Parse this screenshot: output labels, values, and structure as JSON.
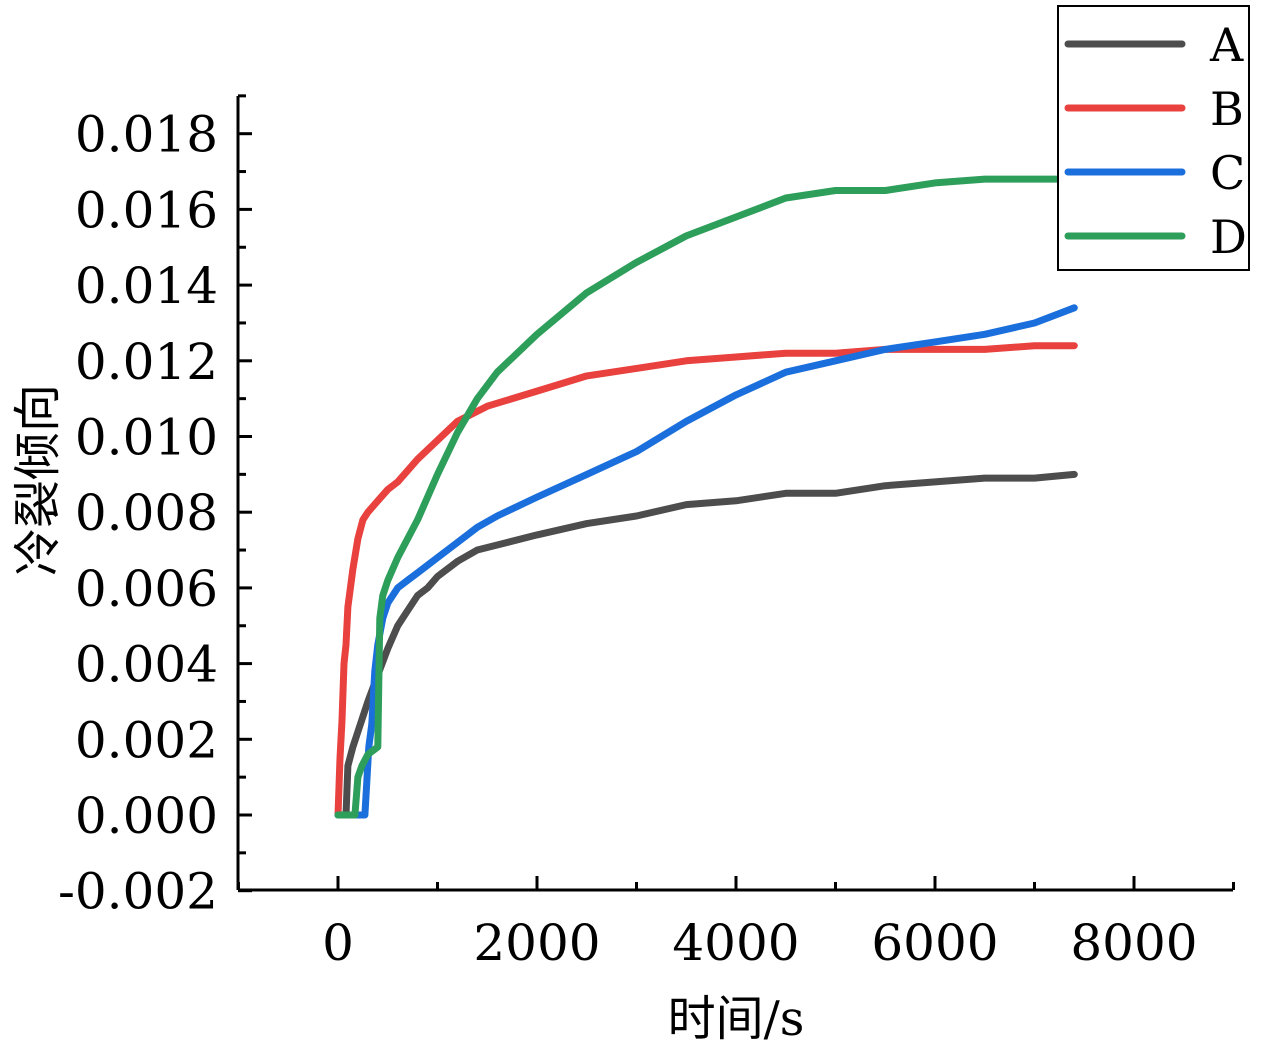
{
  "chart_data": {
    "type": "line",
    "xlabel": "时间/s",
    "ylabel": "冷裂倾向",
    "xlim": [
      -1000,
      9000
    ],
    "ylim": [
      -0.002,
      0.019
    ],
    "xticks": [
      "0",
      "2000",
      "4000",
      "6000",
      "8000"
    ],
    "yticks": [
      "-0.002",
      "0.000",
      "0.002",
      "0.004",
      "0.006",
      "0.008",
      "0.010",
      "0.012",
      "0.014",
      "0.016",
      "0.018"
    ],
    "grid": false,
    "legend_position": "top-right",
    "series": [
      {
        "name": "A",
        "color": "#4d4d4d",
        "x": [
          50,
          80,
          100,
          150,
          200,
          300,
          400,
          500,
          600,
          700,
          800,
          900,
          1000,
          1200,
          1400,
          1700,
          2000,
          2500,
          3000,
          3500,
          4000,
          4500,
          5000,
          5500,
          6000,
          6500,
          7000,
          7400
        ],
        "y": [
          0.0,
          0.0,
          0.0013,
          0.0018,
          0.0022,
          0.003,
          0.0037,
          0.0044,
          0.005,
          0.0054,
          0.0058,
          0.006,
          0.0063,
          0.0067,
          0.007,
          0.0072,
          0.0074,
          0.0077,
          0.0079,
          0.0082,
          0.0083,
          0.0085,
          0.0085,
          0.0087,
          0.0088,
          0.0089,
          0.0089,
          0.009
        ]
      },
      {
        "name": "B",
        "color": "#e8413e",
        "x": [
          0,
          20,
          40,
          60,
          80,
          100,
          150,
          200,
          250,
          300,
          400,
          500,
          600,
          800,
          1000,
          1200,
          1500,
          2000,
          2500,
          3000,
          3500,
          4000,
          4500,
          5000,
          5500,
          6000,
          6500,
          7000,
          7400
        ],
        "y": [
          0.0,
          0.0015,
          0.0025,
          0.004,
          0.0045,
          0.0055,
          0.0065,
          0.0073,
          0.0078,
          0.008,
          0.0083,
          0.0086,
          0.0088,
          0.0094,
          0.0099,
          0.0104,
          0.0108,
          0.0112,
          0.0116,
          0.0118,
          0.012,
          0.0121,
          0.0122,
          0.0122,
          0.0123,
          0.0123,
          0.0123,
          0.0124,
          0.0124
        ]
      },
      {
        "name": "C",
        "color": "#1b6fdc",
        "x": [
          0,
          270,
          310,
          340,
          370,
          400,
          450,
          500,
          600,
          700,
          800,
          900,
          1000,
          1200,
          1400,
          1600,
          2000,
          2500,
          3000,
          3500,
          4000,
          4500,
          5000,
          5500,
          6000,
          6500,
          7000,
          7400
        ],
        "y": [
          0.0,
          0.0,
          0.0018,
          0.0024,
          0.0038,
          0.0045,
          0.0052,
          0.0056,
          0.006,
          0.0062,
          0.0064,
          0.0066,
          0.0068,
          0.0072,
          0.0076,
          0.0079,
          0.0084,
          0.009,
          0.0096,
          0.0104,
          0.0111,
          0.0117,
          0.012,
          0.0123,
          0.0125,
          0.0127,
          0.013,
          0.0134
        ]
      },
      {
        "name": "D",
        "color": "#2e9e5b",
        "x": [
          0,
          170,
          200,
          240,
          300,
          400,
          420,
          450,
          500,
          600,
          800,
          1000,
          1200,
          1400,
          1600,
          2000,
          2500,
          3000,
          3500,
          4000,
          4500,
          5000,
          5500,
          6000,
          6500,
          7000,
          7400
        ],
        "y": [
          0.0,
          0.0,
          0.001,
          0.0013,
          0.0016,
          0.0018,
          0.0052,
          0.0058,
          0.0062,
          0.0068,
          0.0078,
          0.009,
          0.0101,
          0.011,
          0.0117,
          0.0127,
          0.0138,
          0.0146,
          0.0153,
          0.0158,
          0.0163,
          0.0165,
          0.0165,
          0.0167,
          0.0168,
          0.0168,
          0.0168
        ]
      }
    ]
  }
}
